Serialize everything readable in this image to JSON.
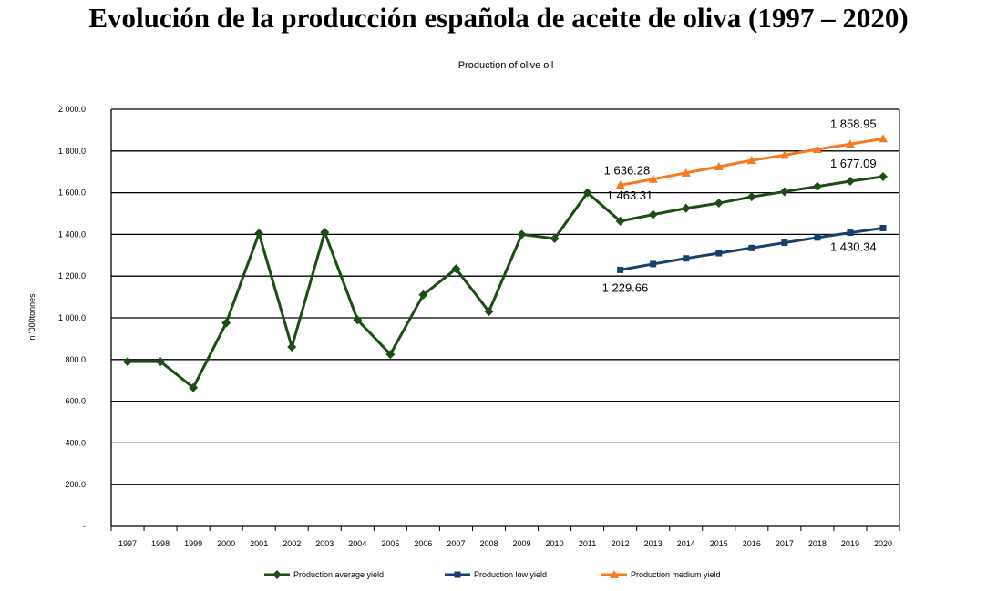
{
  "page": {
    "title": "Evolución de la producción española de aceite de oliva (1997 – 2020)"
  },
  "chart_data": {
    "type": "line",
    "title": "Production of olive oil",
    "ylabel": "in '000tonnes",
    "xlabel": "",
    "ylim": [
      0,
      2000
    ],
    "yticks": [
      "-",
      "200.0",
      "400.0",
      "600.0",
      "800.0",
      "1 000.0",
      "1 200.0",
      "1 400.0",
      "1 600.0",
      "1 800.0",
      "2 000.0"
    ],
    "x": [
      "1997",
      "1998",
      "1999",
      "2000",
      "2001",
      "2002",
      "2003",
      "2004",
      "2005",
      "2006",
      "2007",
      "2008",
      "2009",
      "2010",
      "2011",
      "2012",
      "2013",
      "2014",
      "2015",
      "2016",
      "2017",
      "2018",
      "2019",
      "2020"
    ],
    "grid": true,
    "legend_position": "bottom",
    "series": [
      {
        "name": "Production average yield",
        "color": "#1b4d14",
        "marker": "diamond",
        "values": [
          790,
          790,
          665,
          975,
          1405,
          860,
          1410,
          990,
          825,
          1110,
          1235,
          1030,
          1400,
          1380,
          1600,
          1463.31,
          1495,
          1525,
          1550,
          1580,
          1605,
          1630,
          1655,
          1677.09
        ]
      },
      {
        "name": "Production low yield",
        "color": "#17416b",
        "marker": "square",
        "values": [
          null,
          null,
          null,
          null,
          null,
          null,
          null,
          null,
          null,
          null,
          null,
          null,
          null,
          null,
          null,
          1229.66,
          1258,
          1285,
          1310,
          1335,
          1360,
          1385,
          1408,
          1430.34
        ]
      },
      {
        "name": "Production medium yield",
        "color": "#f47a1f",
        "marker": "triangle",
        "values": [
          null,
          null,
          null,
          null,
          null,
          null,
          null,
          null,
          null,
          null,
          null,
          null,
          null,
          null,
          null,
          1636.28,
          1665,
          1695,
          1725,
          1755,
          1780,
          1808,
          1833,
          1858.95
        ]
      }
    ],
    "annotations": [
      {
        "text": "1 858.95",
        "series": 2,
        "index": 23
      },
      {
        "text": "1 636.28",
        "series": 2,
        "index": 15
      },
      {
        "text": "1 677.09",
        "series": 0,
        "index": 23
      },
      {
        "text": "1 463.31",
        "series": 0,
        "index": 15
      },
      {
        "text": "1 430.34",
        "series": 1,
        "index": 23
      },
      {
        "text": "1 229.66",
        "series": 1,
        "index": 15
      }
    ]
  }
}
